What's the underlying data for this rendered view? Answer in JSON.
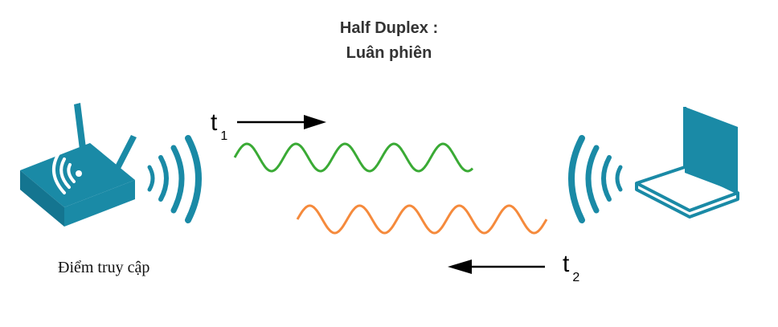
{
  "title": {
    "line1": "Half Duplex :",
    "line2": "Luân phiên"
  },
  "access_point": {
    "label": "Điểm truy cập"
  },
  "signals": {
    "t1": {
      "main": "t",
      "sub": "1",
      "color": "#3aaa35",
      "direction": "right"
    },
    "t2": {
      "main": "t",
      "sub": "2",
      "color": "#f58a3c",
      "direction": "left"
    }
  },
  "colors": {
    "device": "#1a8aa6",
    "waves": "#1a8aa6",
    "arrow": "#000000"
  },
  "icons": [
    "router-icon",
    "laptop-icon",
    "wifi-emission-icon"
  ]
}
